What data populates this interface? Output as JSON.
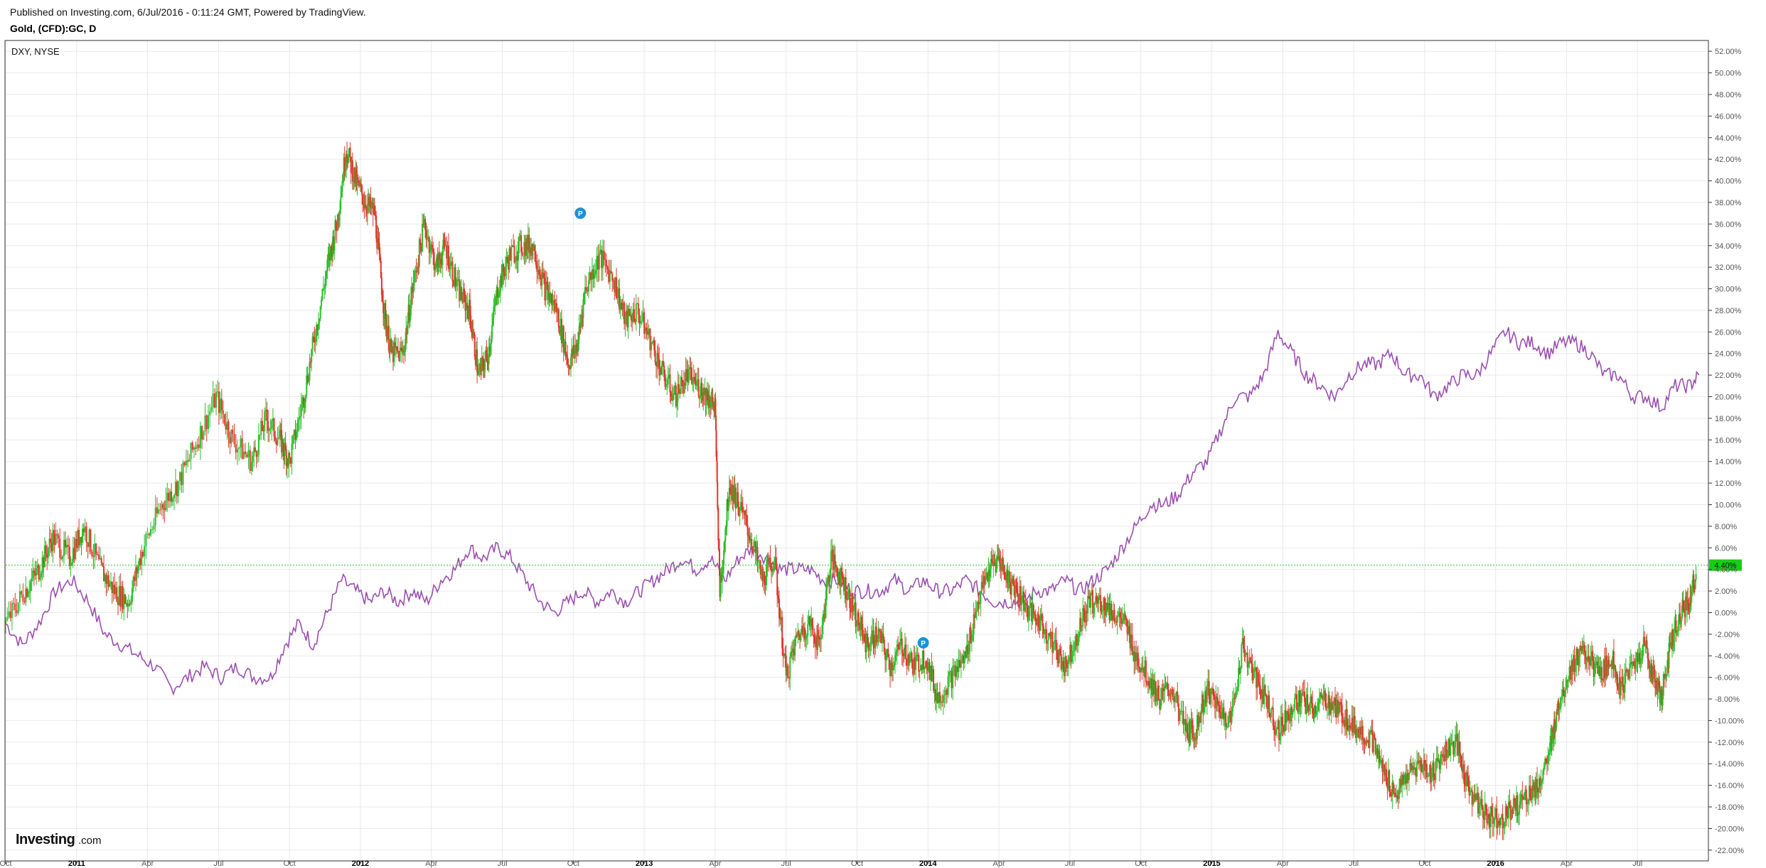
{
  "header": {
    "published": "Published on Investing.com, 6/Jul/2016 - 0:11:24 GMT, Powered by TradingView.",
    "symbol": "Gold, (CFD):GC, D"
  },
  "legend": "DXY, NYSE",
  "logo": {
    "main": "Investing",
    "suffix": ".com"
  },
  "current_label": "4.40%",
  "colors": {
    "up": "#2bbf2b",
    "down": "#e0362c",
    "dxy": "#9b4fb0",
    "grid": "#e9e9e9",
    "marker": "#1e90d6",
    "current_line": "#2bc02b",
    "current_tag": "#14d014"
  },
  "chart_data": {
    "type": "line",
    "title": "Gold, (CFD):GC, D",
    "y_unit": "percent change",
    "ylim": [
      -23,
      53
    ],
    "yticks": [
      52,
      50,
      48,
      46,
      44,
      42,
      40,
      38,
      36,
      34,
      32,
      30,
      28,
      26,
      24,
      22,
      20,
      18,
      16,
      14,
      12,
      10,
      8,
      6,
      4,
      2,
      0,
      -2,
      -4,
      -6,
      -8,
      -10,
      -12,
      -14,
      -16,
      -18,
      -20,
      -22
    ],
    "x_ticks": [
      {
        "label": "Oct",
        "year": false
      },
      {
        "label": "2011",
        "year": true
      },
      {
        "label": "Apr",
        "year": false
      },
      {
        "label": "Jul",
        "year": false
      },
      {
        "label": "Oct",
        "year": false
      },
      {
        "label": "2012",
        "year": true
      },
      {
        "label": "Apr",
        "year": false
      },
      {
        "label": "Jul",
        "year": false
      },
      {
        "label": "Oct",
        "year": false
      },
      {
        "label": "2013",
        "year": true
      },
      {
        "label": "Apr",
        "year": false
      },
      {
        "label": "Jul",
        "year": false
      },
      {
        "label": "Oct",
        "year": false
      },
      {
        "label": "2014",
        "year": true
      },
      {
        "label": "Apr",
        "year": false
      },
      {
        "label": "Jul",
        "year": false
      },
      {
        "label": "Oct",
        "year": false
      },
      {
        "label": "2015",
        "year": true
      },
      {
        "label": "Apr",
        "year": false
      },
      {
        "label": "Jul",
        "year": false
      },
      {
        "label": "Oct",
        "year": false
      },
      {
        "label": "2016",
        "year": true
      },
      {
        "label": "Apr",
        "year": false
      },
      {
        "label": "Jul",
        "year": false
      }
    ],
    "current_value": 4.4,
    "markers": [
      {
        "label": "P",
        "x": 24.3,
        "y": 37
      },
      {
        "label": "P",
        "x": 38.8,
        "y": -2.8
      }
    ],
    "series": [
      {
        "name": "GC",
        "style": "candles",
        "points": [
          [
            0,
            -1
          ],
          [
            0.8,
            2
          ],
          [
            1.4,
            4
          ],
          [
            2.0,
            7
          ],
          [
            2.7,
            5
          ],
          [
            3.3,
            8
          ],
          [
            4.0,
            4
          ],
          [
            4.6,
            2
          ],
          [
            5.2,
            1
          ],
          [
            5.8,
            6
          ],
          [
            6.6,
            10
          ],
          [
            7.3,
            12
          ],
          [
            8.1,
            16
          ],
          [
            8.9,
            20
          ],
          [
            9.6,
            16
          ],
          [
            10.4,
            14
          ],
          [
            11.0,
            18
          ],
          [
            11.6,
            16
          ],
          [
            12.0,
            14
          ],
          [
            12.6,
            20
          ],
          [
            13.1,
            26
          ],
          [
            13.6,
            32
          ],
          [
            14.0,
            36
          ],
          [
            14.4,
            43
          ],
          [
            14.8,
            40
          ],
          [
            15.2,
            38
          ],
          [
            15.6,
            37
          ],
          [
            16.0,
            28
          ],
          [
            16.3,
            24
          ],
          [
            16.8,
            24
          ],
          [
            17.2,
            30
          ],
          [
            17.7,
            36
          ],
          [
            18.2,
            32
          ],
          [
            18.6,
            34
          ],
          [
            19.1,
            30
          ],
          [
            19.6,
            28
          ],
          [
            20.0,
            22
          ],
          [
            20.4,
            24
          ],
          [
            20.8,
            30
          ],
          [
            21.3,
            33
          ],
          [
            21.8,
            34
          ],
          [
            22.3,
            34
          ],
          [
            22.8,
            30
          ],
          [
            23.3,
            28
          ],
          [
            23.8,
            23
          ],
          [
            24.2,
            25
          ],
          [
            24.5,
            30
          ],
          [
            25.1,
            33
          ],
          [
            25.7,
            31
          ],
          [
            26.2,
            27
          ],
          [
            26.7,
            28
          ],
          [
            27.3,
            25
          ],
          [
            27.8,
            22
          ],
          [
            28.3,
            20
          ],
          [
            28.8,
            22
          ],
          [
            29.3,
            21
          ],
          [
            29.7,
            20
          ],
          [
            30.0,
            19
          ],
          [
            30.2,
            2
          ],
          [
            30.6,
            12
          ],
          [
            31.0,
            10
          ],
          [
            31.5,
            7
          ],
          [
            32.0,
            3
          ],
          [
            32.5,
            5
          ],
          [
            33.0,
            -6
          ],
          [
            33.5,
            -2
          ],
          [
            34.0,
            -1
          ],
          [
            34.4,
            -3
          ],
          [
            34.9,
            5
          ],
          [
            35.4,
            3
          ],
          [
            35.9,
            0
          ],
          [
            36.4,
            -3
          ],
          [
            36.9,
            -2
          ],
          [
            37.4,
            -5
          ],
          [
            37.9,
            -3
          ],
          [
            38.4,
            -5
          ],
          [
            38.9,
            -4
          ],
          [
            39.4,
            -8
          ],
          [
            40.0,
            -6
          ],
          [
            40.6,
            -4
          ],
          [
            41.1,
            1
          ],
          [
            41.6,
            4
          ],
          [
            42.0,
            5
          ],
          [
            42.4,
            3
          ],
          [
            42.8,
            2
          ],
          [
            43.3,
            0
          ],
          [
            43.8,
            -1
          ],
          [
            44.3,
            -3
          ],
          [
            44.8,
            -5
          ],
          [
            45.3,
            -2
          ],
          [
            45.8,
            1
          ],
          [
            46.3,
            1
          ],
          [
            46.8,
            0
          ],
          [
            47.3,
            -1
          ],
          [
            47.8,
            -4
          ],
          [
            48.3,
            -6
          ],
          [
            48.8,
            -8
          ],
          [
            49.3,
            -7
          ],
          [
            49.9,
            -11
          ],
          [
            50.3,
            -11
          ],
          [
            50.8,
            -7
          ],
          [
            51.3,
            -9
          ],
          [
            51.8,
            -10
          ],
          [
            52.3,
            -3
          ],
          [
            52.8,
            -6
          ],
          [
            53.3,
            -8
          ],
          [
            53.8,
            -11
          ],
          [
            54.3,
            -9
          ],
          [
            54.8,
            -8
          ],
          [
            55.3,
            -9
          ],
          [
            55.8,
            -8
          ],
          [
            56.3,
            -9
          ],
          [
            56.8,
            -10
          ],
          [
            57.3,
            -11
          ],
          [
            57.8,
            -12
          ],
          [
            58.3,
            -15
          ],
          [
            58.8,
            -17
          ],
          [
            59.3,
            -15
          ],
          [
            59.8,
            -14
          ],
          [
            60.3,
            -15
          ],
          [
            60.8,
            -13
          ],
          [
            61.3,
            -12
          ],
          [
            61.8,
            -16
          ],
          [
            62.3,
            -18
          ],
          [
            62.8,
            -19
          ],
          [
            63.3,
            -19
          ],
          [
            63.8,
            -18
          ],
          [
            64.3,
            -17
          ],
          [
            64.8,
            -16
          ],
          [
            65.3,
            -13
          ],
          [
            65.6,
            -9
          ],
          [
            66.0,
            -6
          ],
          [
            66.5,
            -4
          ],
          [
            66.9,
            -4
          ],
          [
            67.4,
            -6
          ],
          [
            67.9,
            -4
          ],
          [
            68.3,
            -7
          ],
          [
            68.8,
            -5
          ],
          [
            69.3,
            -3
          ],
          [
            69.7,
            -6
          ],
          [
            70.0,
            -8
          ],
          [
            70.4,
            -3
          ],
          [
            70.8,
            0
          ],
          [
            71.2,
            1
          ],
          [
            71.5,
            4
          ]
        ]
      },
      {
        "name": "DXY",
        "style": "line",
        "points": [
          [
            0,
            -1
          ],
          [
            0.7,
            -3
          ],
          [
            1.4,
            -1
          ],
          [
            2.1,
            2
          ],
          [
            2.8,
            3
          ],
          [
            3.5,
            1
          ],
          [
            4.2,
            -2
          ],
          [
            4.9,
            -3
          ],
          [
            5.6,
            -4
          ],
          [
            6.3,
            -5
          ],
          [
            7.0,
            -7
          ],
          [
            7.7,
            -6
          ],
          [
            8.4,
            -5
          ],
          [
            9.1,
            -6
          ],
          [
            9.8,
            -5
          ],
          [
            10.5,
            -6
          ],
          [
            11.2,
            -6
          ],
          [
            11.8,
            -3
          ],
          [
            12.4,
            -1
          ],
          [
            13.0,
            -3
          ],
          [
            13.6,
            0
          ],
          [
            14.2,
            3
          ],
          [
            14.8,
            2
          ],
          [
            15.4,
            1
          ],
          [
            16.0,
            2
          ],
          [
            16.6,
            1
          ],
          [
            17.2,
            2
          ],
          [
            17.8,
            1
          ],
          [
            18.4,
            3
          ],
          [
            19.0,
            4
          ],
          [
            19.6,
            6
          ],
          [
            20.2,
            5
          ],
          [
            20.8,
            6
          ],
          [
            21.4,
            5
          ],
          [
            22.0,
            3
          ],
          [
            22.6,
            1
          ],
          [
            23.2,
            0
          ],
          [
            23.8,
            1
          ],
          [
            24.4,
            2
          ],
          [
            25.0,
            1
          ],
          [
            25.6,
            2
          ],
          [
            26.2,
            1
          ],
          [
            26.8,
            2
          ],
          [
            27.4,
            3
          ],
          [
            28.0,
            4
          ],
          [
            28.6,
            5
          ],
          [
            29.2,
            4
          ],
          [
            29.8,
            5
          ],
          [
            30.4,
            3
          ],
          [
            31.0,
            5
          ],
          [
            31.6,
            6
          ],
          [
            32.2,
            5
          ],
          [
            32.8,
            4
          ],
          [
            33.4,
            4
          ],
          [
            34.0,
            4
          ],
          [
            34.6,
            3
          ],
          [
            35.2,
            3
          ],
          [
            35.8,
            2
          ],
          [
            36.4,
            2
          ],
          [
            37.0,
            2
          ],
          [
            37.6,
            3
          ],
          [
            38.2,
            2
          ],
          [
            38.8,
            3
          ],
          [
            39.4,
            2
          ],
          [
            40.0,
            2
          ],
          [
            40.6,
            3
          ],
          [
            41.2,
            2
          ],
          [
            41.8,
            1
          ],
          [
            42.4,
            1
          ],
          [
            43.0,
            1
          ],
          [
            43.6,
            2
          ],
          [
            44.2,
            2
          ],
          [
            44.8,
            3
          ],
          [
            45.4,
            2
          ],
          [
            46.0,
            3
          ],
          [
            46.6,
            4
          ],
          [
            47.2,
            6
          ],
          [
            47.8,
            8
          ],
          [
            48.4,
            10
          ],
          [
            49.0,
            10
          ],
          [
            49.6,
            11
          ],
          [
            50.2,
            13
          ],
          [
            50.8,
            14
          ],
          [
            51.4,
            17
          ],
          [
            52.0,
            20
          ],
          [
            52.6,
            20
          ],
          [
            53.2,
            22
          ],
          [
            53.8,
            26
          ],
          [
            54.4,
            24
          ],
          [
            55.0,
            22
          ],
          [
            55.6,
            21
          ],
          [
            56.2,
            20
          ],
          [
            56.8,
            22
          ],
          [
            57.4,
            23
          ],
          [
            58.0,
            23
          ],
          [
            58.6,
            24
          ],
          [
            59.2,
            22
          ],
          [
            59.8,
            22
          ],
          [
            60.4,
            20
          ],
          [
            61.0,
            21
          ],
          [
            61.6,
            22
          ],
          [
            62.2,
            22
          ],
          [
            62.8,
            24
          ],
          [
            63.4,
            26
          ],
          [
            64.0,
            25
          ],
          [
            64.6,
            25
          ],
          [
            65.2,
            24
          ],
          [
            65.8,
            25
          ],
          [
            66.4,
            25
          ],
          [
            67.0,
            24
          ],
          [
            67.6,
            22
          ],
          [
            68.2,
            22
          ],
          [
            68.8,
            20
          ],
          [
            69.4,
            20
          ],
          [
            70.0,
            19
          ],
          [
            70.6,
            21
          ],
          [
            71.2,
            21
          ],
          [
            71.6,
            22
          ]
        ]
      }
    ]
  }
}
